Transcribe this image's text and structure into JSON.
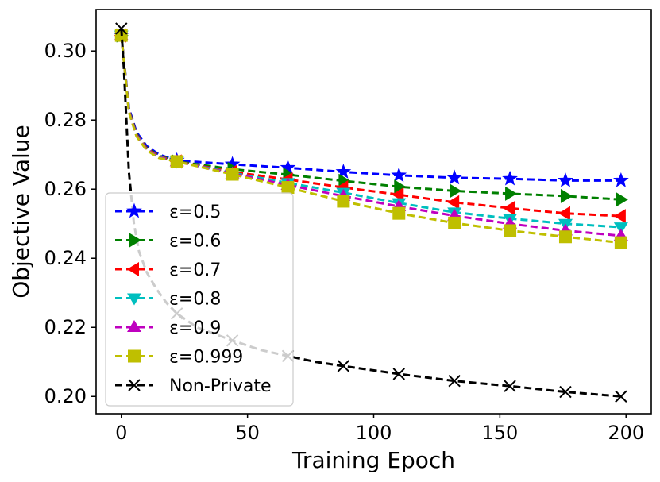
{
  "chart_data": {
    "type": "line",
    "title": "",
    "xlabel": "Training Epoch",
    "ylabel": "Objective Value",
    "xlim": [
      -10,
      210
    ],
    "ylim": [
      0.195,
      0.312
    ],
    "xticks": [
      0,
      50,
      100,
      150,
      200
    ],
    "yticks": [
      0.2,
      0.22,
      0.24,
      0.26,
      0.28,
      0.3
    ],
    "ytick_labels": [
      "0.20",
      "0.22",
      "0.24",
      "0.26",
      "0.28",
      "0.30"
    ],
    "grid": false,
    "legend_position": "lower-left",
    "marker_x": [
      0,
      22,
      44,
      66,
      88,
      110,
      132,
      154,
      176,
      198
    ],
    "series": [
      {
        "name": "ε=0.5",
        "color": "#0000ff",
        "marker": "star",
        "x": [
          0,
          3,
          6,
          10,
          15,
          22,
          44,
          66,
          88,
          110,
          132,
          154,
          176,
          198
        ],
        "y": [
          0.3045,
          0.2835,
          0.2765,
          0.2725,
          0.27,
          0.2683,
          0.2672,
          0.2662,
          0.265,
          0.264,
          0.2633,
          0.263,
          0.2625,
          0.2625
        ]
      },
      {
        "name": "ε=0.6",
        "color": "#008000",
        "marker": "triangle-right",
        "x": [
          0,
          3,
          6,
          10,
          15,
          22,
          44,
          66,
          88,
          110,
          132,
          154,
          176,
          198
        ],
        "y": [
          0.3045,
          0.283,
          0.276,
          0.272,
          0.2697,
          0.268,
          0.2658,
          0.2642,
          0.2624,
          0.2607,
          0.2595,
          0.2587,
          0.258,
          0.257
        ]
      },
      {
        "name": "ε=0.7",
        "color": "#ff0000",
        "marker": "triangle-left",
        "x": [
          0,
          3,
          6,
          10,
          15,
          22,
          44,
          66,
          88,
          110,
          132,
          154,
          176,
          198
        ],
        "y": [
          0.3045,
          0.2828,
          0.2758,
          0.2718,
          0.2695,
          0.268,
          0.265,
          0.2628,
          0.2605,
          0.2584,
          0.2562,
          0.2545,
          0.253,
          0.2522
        ]
      },
      {
        "name": "ε=0.8",
        "color": "#00bfbf",
        "marker": "triangle-down",
        "x": [
          0,
          3,
          6,
          10,
          15,
          22,
          44,
          66,
          88,
          110,
          132,
          154,
          176,
          198
        ],
        "y": [
          0.3045,
          0.2826,
          0.2756,
          0.2716,
          0.2693,
          0.268,
          0.2647,
          0.2618,
          0.259,
          0.256,
          0.2533,
          0.2515,
          0.25,
          0.249
        ]
      },
      {
        "name": "ε=0.9",
        "color": "#bf00bf",
        "marker": "triangle-up",
        "x": [
          0,
          3,
          6,
          10,
          15,
          22,
          44,
          66,
          88,
          110,
          132,
          154,
          176,
          198
        ],
        "y": [
          0.3045,
          0.2825,
          0.2755,
          0.2715,
          0.2692,
          0.268,
          0.2645,
          0.2612,
          0.258,
          0.255,
          0.2523,
          0.25,
          0.248,
          0.2465
        ]
      },
      {
        "name": "ε=0.999",
        "color": "#bfbf00",
        "marker": "square",
        "x": [
          0,
          3,
          6,
          10,
          15,
          22,
          44,
          66,
          88,
          110,
          132,
          154,
          176,
          198
        ],
        "y": [
          0.3045,
          0.2823,
          0.2753,
          0.2713,
          0.269,
          0.268,
          0.2643,
          0.2605,
          0.2565,
          0.253,
          0.2502,
          0.248,
          0.2462,
          0.2445
        ]
      },
      {
        "name": "Non-Private",
        "color": "#000000",
        "marker": "x",
        "x": [
          0,
          1,
          2,
          3,
          5,
          7,
          10,
          14,
          18,
          22,
          30,
          44,
          55,
          66,
          77,
          88,
          110,
          132,
          154,
          176,
          198
        ],
        "y": [
          0.3065,
          0.295,
          0.28,
          0.265,
          0.25,
          0.242,
          0.236,
          0.231,
          0.227,
          0.224,
          0.22,
          0.2162,
          0.2135,
          0.2117,
          0.21,
          0.2088,
          0.2065,
          0.2045,
          0.203,
          0.2013,
          0.2
        ]
      }
    ]
  }
}
